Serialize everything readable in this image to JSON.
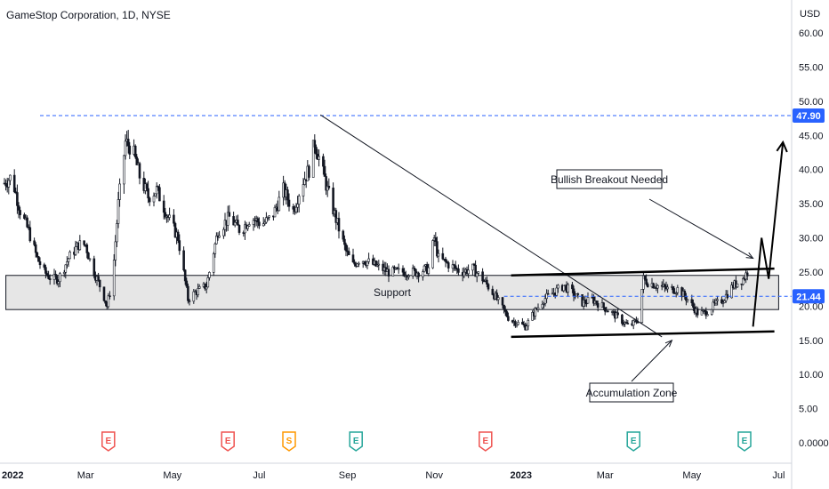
{
  "header": {
    "title": "GameStop Corporation, 1D, NYSE",
    "currency": "USD"
  },
  "chart_data": {
    "type": "candlestick",
    "title": "GameStop Corporation, 1D, NYSE",
    "ylabel": "USD",
    "ylim": [
      -1.5,
      64
    ],
    "y_ticks": [
      "60.00",
      "55.00",
      "50.00",
      "45.00",
      "40.00",
      "35.00",
      "30.00",
      "25.00",
      "20.00",
      "15.00",
      "10.00",
      "5.00",
      "0.0000"
    ],
    "x_ticks": [
      "2022",
      "Mar",
      "May",
      "Jul",
      "Sep",
      "Nov",
      "2023",
      "Mar",
      "May",
      "Jul"
    ],
    "price_path": [
      [
        "2022-01-03",
        38
      ],
      [
        "2022-01-08",
        39
      ],
      [
        "2022-01-14",
        34
      ],
      [
        "2022-01-20",
        31
      ],
      [
        "2022-01-26",
        27
      ],
      [
        "2022-01-31",
        25
      ],
      [
        "2022-02-05",
        24
      ],
      [
        "2022-02-10",
        24
      ],
      [
        "2022-02-17",
        27
      ],
      [
        "2022-02-24",
        29
      ],
      [
        "2022-03-01",
        29
      ],
      [
        "2022-03-05",
        26
      ],
      [
        "2022-03-09",
        24
      ],
      [
        "2022-03-13",
        22
      ],
      [
        "2022-03-16",
        20
      ],
      [
        "2022-03-20",
        24
      ],
      [
        "2022-03-24",
        35
      ],
      [
        "2022-03-29",
        44
      ],
      [
        "2022-04-03",
        43
      ],
      [
        "2022-04-08",
        39
      ],
      [
        "2022-04-14",
        36
      ],
      [
        "2022-04-20",
        37
      ],
      [
        "2022-04-28",
        33
      ],
      [
        "2022-05-05",
        30
      ],
      [
        "2022-05-12",
        21
      ],
      [
        "2022-05-17",
        22
      ],
      [
        "2022-05-25",
        23
      ],
      [
        "2022-06-02",
        31
      ],
      [
        "2022-06-10",
        33
      ],
      [
        "2022-06-18",
        31
      ],
      [
        "2022-06-25",
        33
      ],
      [
        "2022-07-03",
        32
      ],
      [
        "2022-07-10",
        33
      ],
      [
        "2022-07-18",
        37
      ],
      [
        "2022-07-25",
        34
      ],
      [
        "2022-07-31",
        38
      ],
      [
        "2022-08-05",
        40
      ],
      [
        "2022-08-09",
        44
      ],
      [
        "2022-08-13",
        41
      ],
      [
        "2022-08-18",
        37
      ],
      [
        "2022-08-25",
        32
      ],
      [
        "2022-08-31",
        28
      ],
      [
        "2022-09-05",
        26
      ],
      [
        "2022-09-10",
        27
      ],
      [
        "2022-09-20",
        26
      ],
      [
        "2022-09-30",
        25
      ],
      [
        "2022-10-10",
        25
      ],
      [
        "2022-10-20",
        25
      ],
      [
        "2022-10-28",
        25.5
      ],
      [
        "2022-11-01",
        30
      ],
      [
        "2022-11-04",
        27
      ],
      [
        "2022-11-12",
        26
      ],
      [
        "2022-11-20",
        25
      ],
      [
        "2022-11-28",
        25.5
      ],
      [
        "2022-12-05",
        24
      ],
      [
        "2022-12-12",
        22
      ],
      [
        "2022-12-18",
        20
      ],
      [
        "2022-12-24",
        18
      ],
      [
        "2022-12-30",
        17.5
      ],
      [
        "2023-01-04",
        17
      ],
      [
        "2023-01-10",
        19
      ],
      [
        "2023-01-17",
        21
      ],
      [
        "2023-01-24",
        22
      ],
      [
        "2023-01-31",
        23
      ],
      [
        "2023-02-06",
        22
      ],
      [
        "2023-02-13",
        20.5
      ],
      [
        "2023-02-20",
        21
      ],
      [
        "2023-02-27",
        20
      ],
      [
        "2023-03-06",
        19
      ],
      [
        "2023-03-12",
        18
      ],
      [
        "2023-03-18",
        17
      ],
      [
        "2023-03-24",
        18
      ],
      [
        "2023-03-28",
        24
      ],
      [
        "2023-03-31",
        23.5
      ],
      [
        "2023-04-07",
        23
      ],
      [
        "2023-04-14",
        22.5
      ],
      [
        "2023-04-21",
        22.5
      ],
      [
        "2023-04-28",
        21
      ],
      [
        "2023-05-05",
        19
      ],
      [
        "2023-05-10",
        19
      ],
      [
        "2023-05-16",
        20
      ],
      [
        "2023-05-23",
        21
      ],
      [
        "2023-05-30",
        23
      ],
      [
        "2023-06-06",
        24
      ],
      [
        "2023-06-09",
        25
      ],
      [
        "2023-06-12",
        22
      ]
    ],
    "horizontal_levels": [
      {
        "value": 47.9,
        "label": "47.90",
        "color": "#2962ff",
        "style": "dashed"
      },
      {
        "value": 21.44,
        "label": "21.44",
        "color": "#2962ff",
        "style": "dashed",
        "current_price": true
      }
    ],
    "support_zone": {
      "label": "Support",
      "from": "2022-01-04",
      "to": "2023-07-01",
      "low": 19.5,
      "high": 24.5
    },
    "channel": [
      {
        "from": [
          "2022-12-25",
          24.5
        ],
        "to": [
          "2023-06-28",
          25.5
        ]
      },
      {
        "from": [
          "2022-12-25",
          15.5
        ],
        "to": [
          "2023-06-28",
          16.3
        ]
      }
    ],
    "downtrend_line": {
      "from": [
        "2022-08-13",
        48
      ],
      "to": [
        "2023-04-10",
        15.5
      ]
    },
    "projection_arrow": [
      [
        "2023-06-13",
        17
      ],
      [
        "2023-06-19",
        30
      ],
      [
        "2023-06-24",
        24
      ],
      [
        "2023-07-04",
        44
      ]
    ],
    "annotations": [
      {
        "text": "Bullish Breakout Needed",
        "arrow_to": [
          "2023-06-13",
          27
        ]
      },
      {
        "text": "Accumulation Zone",
        "arrow_to": [
          "2023-04-17",
          15
        ]
      }
    ],
    "events": [
      {
        "type": "E",
        "date": "2022-03-17",
        "color": "#ef5350"
      },
      {
        "type": "E",
        "date": "2022-06-09",
        "color": "#ef5350"
      },
      {
        "type": "S",
        "date": "2022-07-22",
        "color": "#ff9800"
      },
      {
        "type": "E",
        "date": "2022-09-07",
        "color": "#26a69a"
      },
      {
        "type": "E",
        "date": "2022-12-07",
        "color": "#ef5350"
      },
      {
        "type": "E",
        "date": "2023-03-21",
        "color": "#26a69a"
      },
      {
        "type": "E",
        "date": "2023-06-07",
        "color": "#26a69a"
      }
    ],
    "colors": {
      "up": "#131722",
      "down": "#131722",
      "level": "#2962ff",
      "zone_fill": "#e6e6e6"
    }
  }
}
